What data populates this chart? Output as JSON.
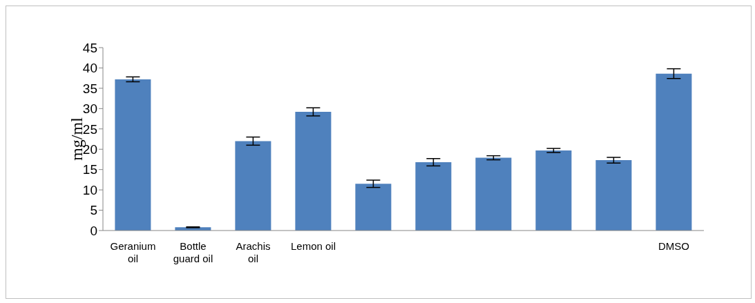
{
  "chart_data": {
    "type": "bar",
    "ylabel": "mg/ml",
    "categories": [
      "Geranium oil",
      "Bottle guard oil",
      "Arachis oil",
      "Lemon oil",
      null,
      null,
      null,
      null,
      null,
      "DMSO"
    ],
    "values": [
      37.2,
      0.8,
      22.0,
      29.2,
      11.5,
      16.8,
      17.9,
      19.7,
      17.3,
      38.6
    ],
    "errors": [
      0.6,
      0.1,
      1.0,
      1.0,
      0.9,
      0.9,
      0.5,
      0.5,
      0.7,
      1.2
    ],
    "color": "#4f81bd",
    "ylim": [
      0,
      45
    ],
    "yticks": [
      0,
      5,
      10,
      15,
      20,
      25,
      30,
      35,
      40,
      45
    ],
    "grid": false,
    "legend": false
  }
}
